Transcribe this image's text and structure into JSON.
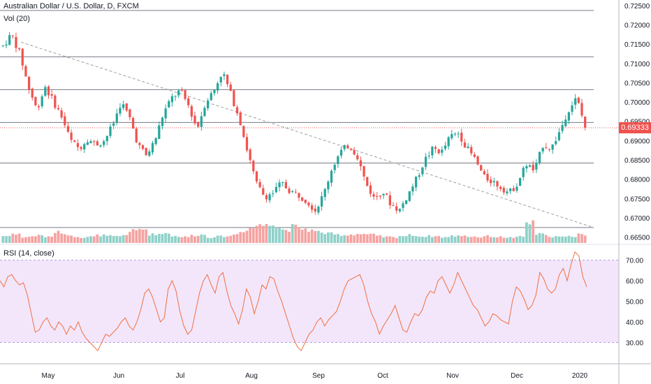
{
  "header": {
    "symbol_title": "Australian Dollar / U.S. Dollar, D, FXCM",
    "volume_label": "Vol (20)",
    "rsi_label": "RSI (14, close)"
  },
  "colors": {
    "up": "#26a69a",
    "down": "#ef5350",
    "volume_up": "#8fd1c9",
    "volume_down": "#f4a3a1",
    "rsi_line": "#f06f3d",
    "rsi_band": "#f3e6fb",
    "hline": "#787b86",
    "trendline": "#9e9e9e",
    "price_line": "#ef5350"
  },
  "chart_data": [
    {
      "type": "candlestick",
      "title": "Australian Dollar / U.S. Dollar, D, FXCM",
      "x_ticks": [
        "May",
        "Jun",
        "Jul",
        "Aug",
        "Sep",
        "Oct",
        "Nov",
        "Dec",
        "2020"
      ],
      "y_ticks": [
        "0.72500",
        "0.72000",
        "0.71500",
        "0.71000",
        "0.70500",
        "0.70000",
        "0.69500",
        "0.69000",
        "0.68500",
        "0.68000",
        "0.67500",
        "0.67000",
        "0.66500"
      ],
      "ylim": [
        0.6635,
        0.7255
      ],
      "last_price": "0.69333",
      "horizontal_levels": [
        0.7237,
        0.7117,
        0.7032,
        0.6947,
        0.6842,
        0.6675
      ],
      "trendline": [
        [
          0.7155,
          0.0
        ],
        [
          0.6675,
          1.0
        ]
      ],
      "price_path": [
        0.7145,
        0.7175,
        0.7125,
        0.704,
        0.698,
        0.704,
        0.7,
        0.696,
        0.69,
        0.688,
        0.6905,
        0.689,
        0.69,
        0.694,
        0.7,
        0.696,
        0.689,
        0.686,
        0.69,
        0.697,
        0.701,
        0.703,
        0.699,
        0.693,
        0.7,
        0.703,
        0.708,
        0.702,
        0.696,
        0.687,
        0.679,
        0.6755,
        0.6765,
        0.679,
        0.677,
        0.676,
        0.6745,
        0.672,
        0.676,
        0.683,
        0.687,
        0.689,
        0.686,
        0.679,
        0.675,
        0.677,
        0.6735,
        0.672,
        0.676,
        0.68,
        0.685,
        0.688,
        0.687,
        0.691,
        0.692,
        0.688,
        0.685,
        0.6805,
        0.6795,
        0.678,
        0.6765,
        0.679,
        0.684,
        0.682,
        0.689,
        0.688,
        0.6925,
        0.698,
        0.701,
        0.6935
      ],
      "volumes": [
        0.72,
        0.95,
        0.55,
        0.7,
        0.8,
        0.62,
        1.1,
        0.9,
        0.68,
        0.58,
        0.64,
        0.78,
        0.7,
        0.66,
        0.82,
        1.25,
        1.4,
        0.88,
        0.92,
        1.05,
        0.7,
        0.62,
        0.78,
        0.84,
        0.58,
        0.66,
        0.7,
        0.9,
        1.25,
        1.55,
        1.8,
        2.05,
        1.6,
        1.35,
        1.7,
        1.45,
        1.3,
        1.15,
        0.95,
        0.85,
        0.82,
        0.88,
        0.92,
        0.85,
        0.7,
        0.62,
        0.58,
        0.72,
        0.8,
        0.66,
        0.7,
        0.68,
        0.6,
        0.72,
        0.78,
        0.66,
        0.6,
        0.7,
        0.62,
        0.58,
        0.56,
        0.64,
        2.05,
        0.9,
        0.72,
        0.65,
        0.6,
        0.68,
        0.95,
        0.7
      ]
    },
    {
      "type": "line",
      "title": "RSI (14, close)",
      "y_ticks": [
        "70.00",
        "60.00",
        "50.00",
        "40.00",
        "30.00"
      ],
      "ylim": [
        20,
        77
      ],
      "bands": [
        30,
        70
      ],
      "values": [
        60,
        57,
        62,
        63,
        60,
        58,
        59,
        53,
        44,
        35,
        36,
        40,
        42,
        38,
        36,
        40,
        38,
        34,
        38,
        36,
        40,
        35,
        32,
        30,
        28,
        26,
        30,
        34,
        33,
        35,
        37,
        40,
        42,
        38,
        36,
        40,
        46,
        54,
        56,
        52,
        46,
        40,
        42,
        56,
        60,
        55,
        45,
        38,
        34,
        36,
        45,
        54,
        60,
        63,
        58,
        54,
        62,
        64,
        55,
        48,
        44,
        39,
        46,
        56,
        52,
        44,
        50,
        58,
        56,
        62,
        61,
        55,
        50,
        44,
        38,
        32,
        28,
        26,
        30,
        34,
        36,
        40,
        42,
        38,
        41,
        43,
        45,
        50,
        56,
        60,
        61,
        62,
        63,
        58,
        50,
        44,
        40,
        34,
        38,
        41,
        44,
        48,
        42,
        36,
        35,
        40,
        44,
        43,
        46,
        52,
        55,
        54,
        60,
        62,
        58,
        54,
        58,
        64,
        60,
        56,
        52,
        48,
        46,
        42,
        38,
        40,
        44,
        43,
        41,
        40,
        39,
        50,
        57,
        55,
        51,
        46,
        48,
        53,
        64,
        61,
        56,
        54,
        56,
        63,
        66,
        60,
        68,
        74,
        72,
        62,
        57
      ]
    }
  ]
}
